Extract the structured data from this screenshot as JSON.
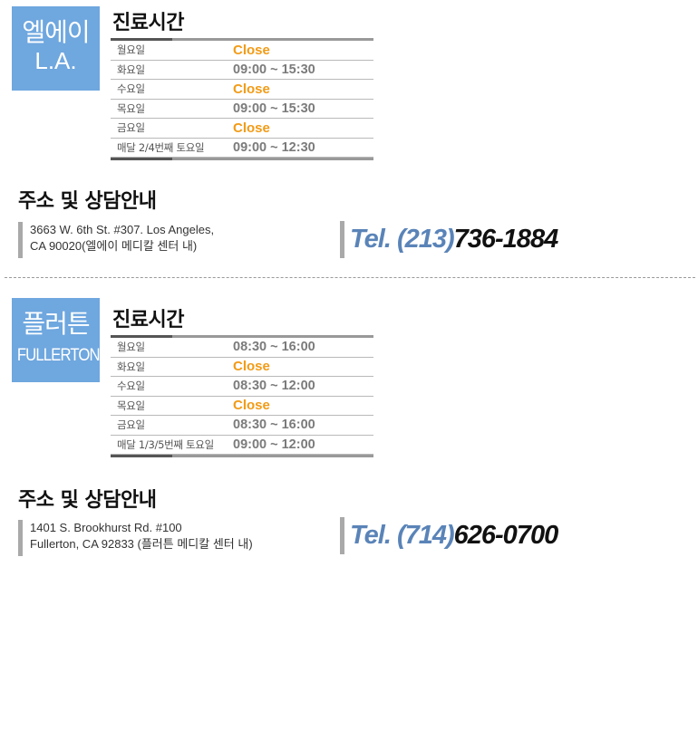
{
  "locations": [
    {
      "badge": {
        "name_ko": "엘에이",
        "name_en": "L.A."
      },
      "hours_title": "진료시간",
      "hours": [
        {
          "day": "월요일",
          "time": "Close",
          "closed": true
        },
        {
          "day": "화요일",
          "time": "09:00 ~ 15:30",
          "closed": false
        },
        {
          "day": "수요일",
          "time": "Close",
          "closed": true
        },
        {
          "day": "목요일",
          "time": "09:00 ~ 15:30",
          "closed": false
        },
        {
          "day": "금요일",
          "time": "Close",
          "closed": true
        },
        {
          "day": "매달 2/4번째 토요일",
          "time": "09:00 ~ 12:30",
          "closed": false
        }
      ],
      "address_title": "주소 및 상담안내",
      "address_lines": [
        "3663 W. 6th St. #307. Los Angeles,",
        "CA 90020(엘에이 메디칼 센터 내)"
      ],
      "tel_prefix": "Tel. (213)",
      "tel_number": "736-1884"
    },
    {
      "badge": {
        "name_ko": "플러튼",
        "name_en": "FULLERTON"
      },
      "hours_title": "진료시간",
      "hours": [
        {
          "day": "월요일",
          "time": "08:30 ~ 16:00",
          "closed": false
        },
        {
          "day": "화요일",
          "time": "Close",
          "closed": true
        },
        {
          "day": "수요일",
          "time": "08:30 ~ 12:00",
          "closed": false
        },
        {
          "day": "목요일",
          "time": "Close",
          "closed": true
        },
        {
          "day": "금요일",
          "time": "08:30 ~ 16:00",
          "closed": false
        },
        {
          "day": "매달 1/3/5번째 토요일",
          "time": "09:00 ~ 12:00",
          "closed": false
        }
      ],
      "address_title": "주소 및 상담안내",
      "address_lines": [
        "1401 S. Brookhurst Rd. #100",
        "Fullerton, CA 92833 (플러튼 메디칼 센터 내)"
      ],
      "tel_prefix": "Tel. (714)",
      "tel_number": "626-0700"
    }
  ],
  "colors": {
    "badge": "#6fa7df",
    "closed": "#f29b16",
    "time": "#7b7b7b",
    "tel_prefix": "#5a84b8"
  }
}
